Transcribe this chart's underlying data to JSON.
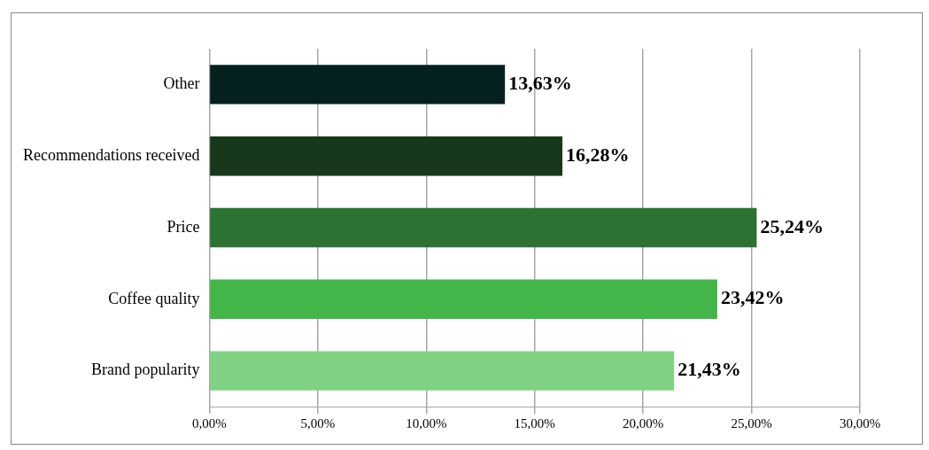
{
  "chart_data": {
    "type": "bar",
    "orientation": "horizontal",
    "categories": [
      "Other",
      "Recommendations received",
      "Price",
      "Coffee quality",
      "Brand popularity"
    ],
    "values": [
      13.63,
      16.28,
      25.24,
      23.42,
      21.43
    ],
    "colors": [
      "#04201f",
      "#17381a",
      "#2c7232",
      "#44b549",
      "#80d282"
    ],
    "value_labels": [
      "13,63%",
      "16,28%",
      "25,24%",
      "23,42%",
      "21,43%"
    ],
    "xlim": [
      0,
      30
    ],
    "xticks": [
      {
        "value": 0,
        "label": "0,00%"
      },
      {
        "value": 5,
        "label": "5,00%"
      },
      {
        "value": 10,
        "label": "10,00%"
      },
      {
        "value": 15,
        "label": "15,00%"
      },
      {
        "value": 20,
        "label": "20,00%"
      },
      {
        "value": 25,
        "label": "25,00%"
      },
      {
        "value": 30,
        "label": "30,00%"
      }
    ],
    "grid": "x",
    "legend": false
  }
}
